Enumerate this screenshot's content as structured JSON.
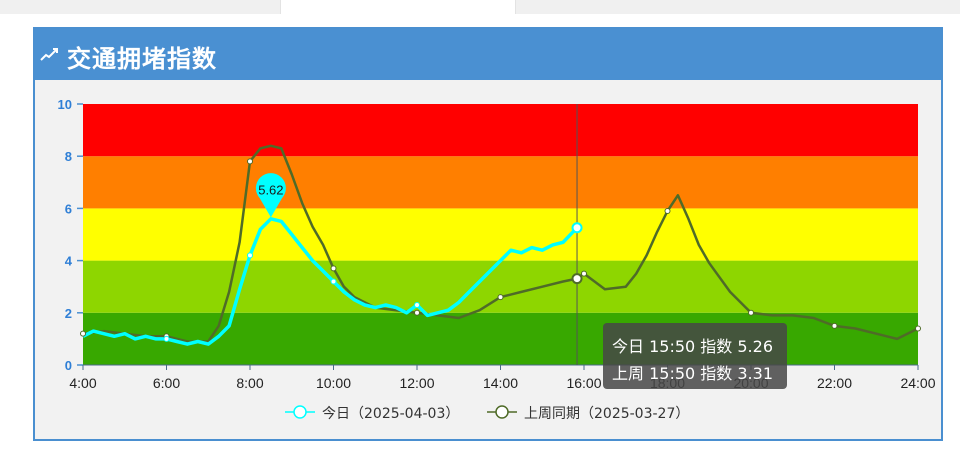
{
  "panel": {
    "title": "交通拥堵指数",
    "icon": "trend-line-icon"
  },
  "colors": {
    "header": "#4a90d2",
    "today": "#00ffff",
    "last_week": "#4f6b28",
    "bands": [
      "#38a800",
      "#8ed600",
      "#ffff00",
      "#ff7f00",
      "#ff0000"
    ]
  },
  "chart_data": {
    "type": "line",
    "xlim": [
      4,
      24
    ],
    "ylim": [
      0,
      10
    ],
    "y_ticks": [
      "0",
      "2",
      "4",
      "6",
      "8",
      "10"
    ],
    "x_ticks": [
      "4:00",
      "6:00",
      "8:00",
      "10:00",
      "12:00",
      "14:00",
      "16:00",
      "18:00",
      "20:00",
      "22:00",
      "24:00"
    ],
    "bands": [
      {
        "from": 0,
        "to": 2
      },
      {
        "from": 2,
        "to": 4
      },
      {
        "from": 4,
        "to": 6
      },
      {
        "from": 6,
        "to": 8
      },
      {
        "from": 8,
        "to": 10
      }
    ],
    "series": [
      {
        "name": "今日（2025-04-03）",
        "x": [
          4,
          4.25,
          4.5,
          4.75,
          5,
          5.25,
          5.5,
          5.75,
          6,
          6.25,
          6.5,
          6.75,
          7,
          7.25,
          7.5,
          7.75,
          8,
          8.25,
          8.5,
          8.75,
          9,
          9.25,
          9.5,
          9.75,
          10,
          10.25,
          10.5,
          10.75,
          11,
          11.25,
          11.5,
          11.75,
          12,
          12.25,
          12.5,
          12.75,
          13,
          13.25,
          13.5,
          13.75,
          14,
          14.25,
          14.5,
          14.75,
          15,
          15.25,
          15.5,
          15.833
        ],
        "y": [
          1.1,
          1.3,
          1.2,
          1.1,
          1.2,
          1.0,
          1.1,
          1.0,
          1.0,
          0.9,
          0.8,
          0.9,
          0.8,
          1.1,
          1.5,
          2.9,
          4.2,
          5.2,
          5.6,
          5.5,
          5.0,
          4.5,
          4.0,
          3.6,
          3.2,
          2.8,
          2.5,
          2.3,
          2.2,
          2.3,
          2.2,
          2.0,
          2.3,
          1.9,
          2.0,
          2.1,
          2.4,
          2.8,
          3.2,
          3.6,
          4.0,
          4.4,
          4.3,
          4.5,
          4.4,
          4.6,
          4.7,
          5.26
        ],
        "max_label": "5.62",
        "max_x": 8.5,
        "max_y": 5.62
      },
      {
        "name": "上周同期（2025-03-27）",
        "x": [
          4,
          4.5,
          5,
          5.5,
          6,
          6.5,
          7,
          7.25,
          7.5,
          7.75,
          8,
          8.25,
          8.5,
          8.75,
          9,
          9.25,
          9.5,
          9.75,
          10,
          10.25,
          10.5,
          10.75,
          11,
          11.5,
          12,
          12.5,
          13,
          13.5,
          14,
          14.5,
          15,
          15.5,
          15.833,
          16,
          16.5,
          17,
          17.25,
          17.5,
          17.75,
          18,
          18.25,
          18.5,
          18.75,
          19,
          19.5,
          20,
          20.5,
          21,
          21.5,
          22,
          22.5,
          23,
          23.5,
          24
        ],
        "y": [
          1.2,
          1.3,
          1.2,
          1.1,
          1.1,
          0.9,
          0.9,
          1.5,
          2.8,
          4.7,
          7.8,
          8.3,
          8.4,
          8.3,
          7.3,
          6.2,
          5.3,
          4.6,
          3.7,
          3.0,
          2.6,
          2.4,
          2.2,
          2.1,
          2.0,
          1.9,
          1.8,
          2.1,
          2.6,
          2.8,
          3.0,
          3.2,
          3.31,
          3.5,
          2.9,
          3.0,
          3.5,
          4.2,
          5.1,
          5.9,
          6.5,
          5.6,
          4.6,
          3.9,
          2.8,
          2.0,
          1.9,
          1.9,
          1.8,
          1.5,
          1.4,
          1.2,
          1.0,
          1.4
        ]
      }
    ],
    "cursor_x": 15.833,
    "tooltip": {
      "line1": "今日 15:50 指数 5.26",
      "line2": "上周 15:50 指数 3.31"
    },
    "legend_position": "bottom-center"
  }
}
